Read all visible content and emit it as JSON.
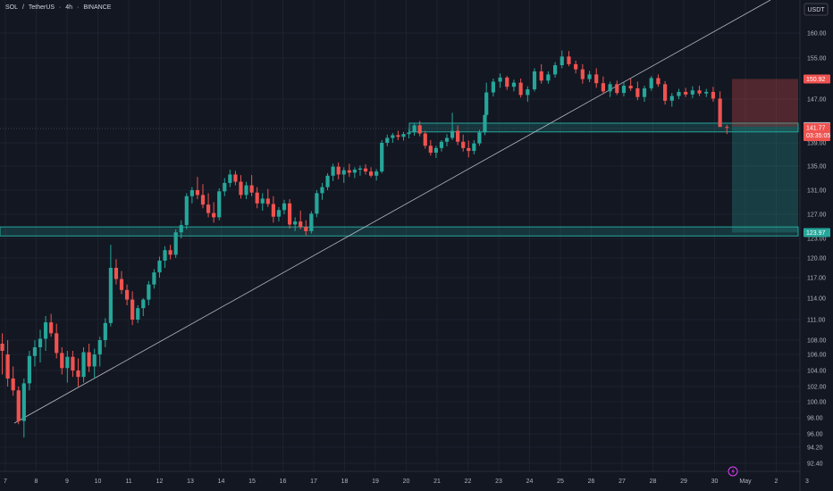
{
  "header": {
    "symbol": "SOL",
    "sep1": " / ",
    "quote": "TetherUS",
    "sep2": " · ",
    "interval": "4h",
    "sep3": " · ",
    "exchange": "BINANCE"
  },
  "axis": {
    "currency": "USDT"
  },
  "colors": {
    "bg": "#131722",
    "up": "#26a69a",
    "down": "#ef5350",
    "grid": "#1e222d",
    "text": "#b2b5be",
    "zone": "#26a69a",
    "stop": "#ef5350"
  },
  "chart_data": {
    "type": "candlestick",
    "y_ticks": [
      "160.00",
      "155.00",
      "150.92",
      "147.00",
      "141.95",
      "141.77",
      "139.00",
      "135.00",
      "131.00",
      "127.00",
      "123.97",
      "123.00",
      "120.00",
      "117.00",
      "114.00",
      "111.00",
      "108.00",
      "106.00",
      "104.00",
      "102.00",
      "100.00",
      "98.00",
      "96.00",
      "94.20",
      "92.40"
    ],
    "x_ticks": [
      "7",
      "8",
      "9",
      "10",
      "11",
      "12",
      "13",
      "14",
      "15",
      "16",
      "17",
      "18",
      "19",
      "20",
      "21",
      "22",
      "23",
      "24",
      "25",
      "26",
      "27",
      "28",
      "29",
      "30",
      "May",
      "2",
      "3"
    ],
    "last_price": "141.77",
    "countdown": "03:35:05",
    "levels": {
      "stop": "150.92",
      "entry": "141.95",
      "target": "123.97"
    },
    "zones": [
      {
        "low": 141.0,
        "high": 142.6
      },
      {
        "low": 123.4,
        "high": 124.9
      }
    ],
    "trendline": {
      "from": [
        7.35,
        97.5
      ],
      "to": [
        30.3,
        161.5
      ]
    },
    "position": {
      "entry": 141.95,
      "stop": 150.92,
      "target": 123.97,
      "start": 30.55,
      "end": 32.4
    }
  }
}
